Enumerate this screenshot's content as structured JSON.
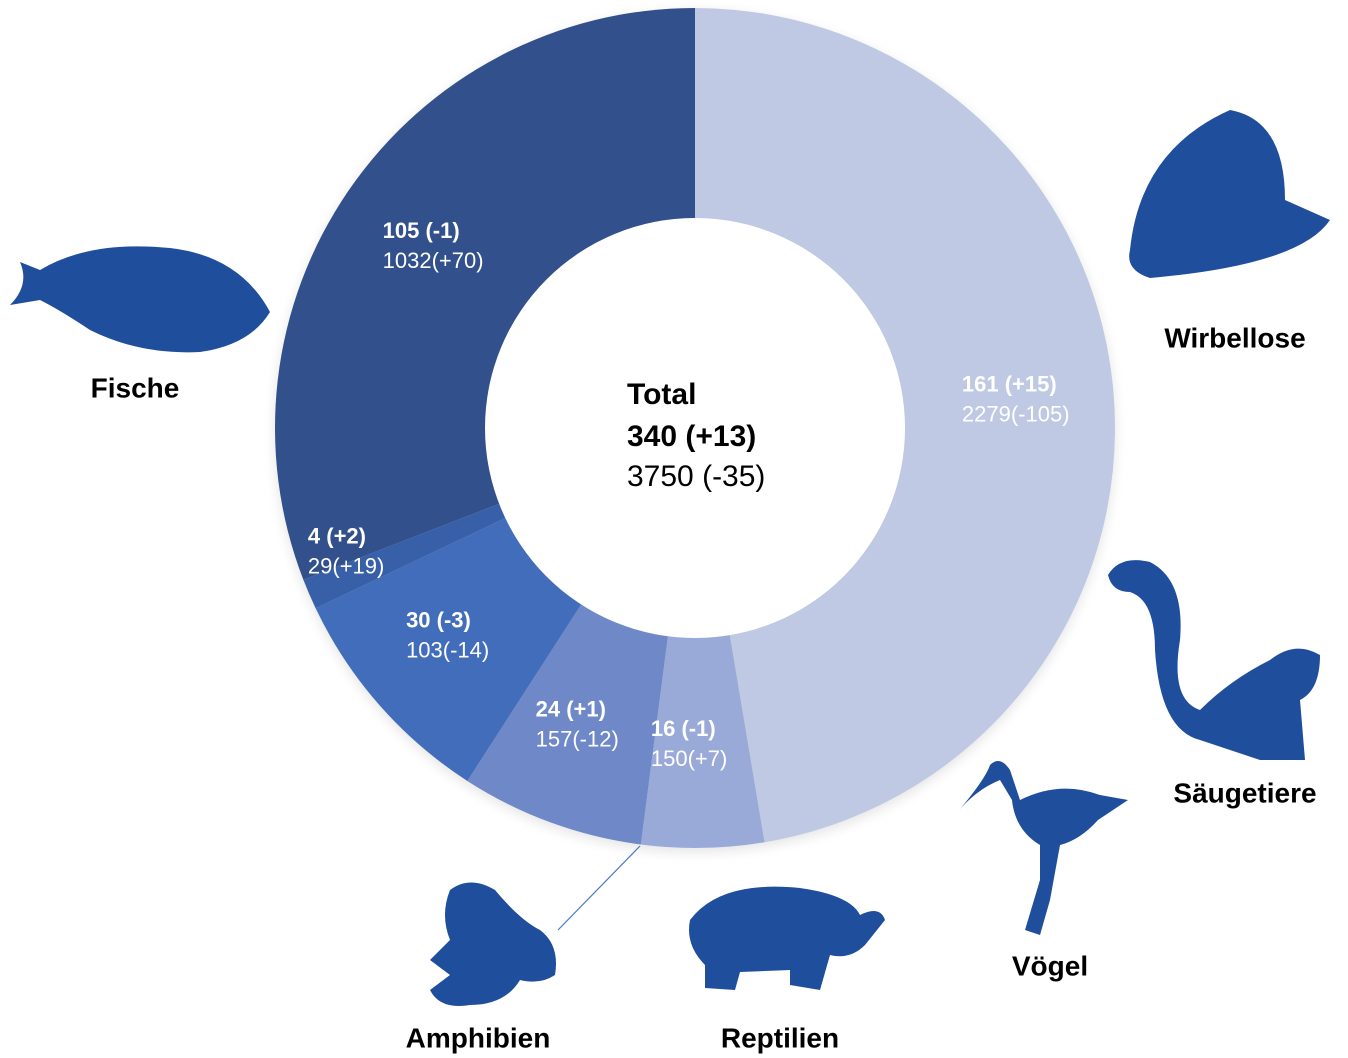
{
  "chart_data": {
    "type": "donut",
    "center_title": "Total",
    "center_total": "340 (+13)",
    "center_subtotal": "3750 (-35)",
    "categories": [
      "Wirbellose",
      "Säugetiere",
      "Vögel",
      "Reptilien",
      "Amphibien",
      "Fische"
    ],
    "values": [
      161,
      16,
      24,
      30,
      4,
      105
    ],
    "value_labels": [
      "161 (+15)",
      "16 (-1)",
      "24 (+1)",
      "30 (-3)",
      "4 (+2)",
      "105 (-1)"
    ],
    "secondary_labels": [
      "2279(-105)",
      "150(+7)",
      "157(-12)",
      "103(-14)",
      "29(+19)",
      "1032(+70)"
    ],
    "colors": [
      "#bfc9e3",
      "#9aaad8",
      "#6e88c8",
      "#426dbb",
      "#3860a8",
      "#32508c"
    ]
  }
}
